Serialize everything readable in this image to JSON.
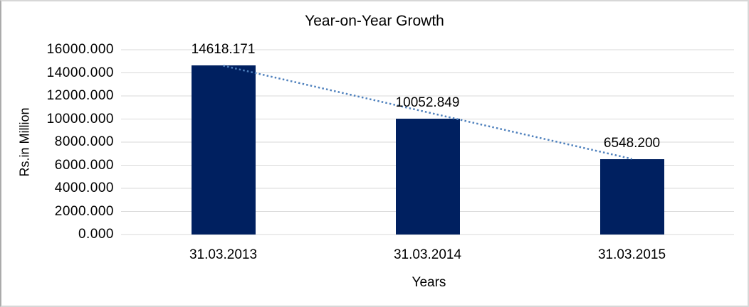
{
  "chart_data": {
    "type": "bar",
    "title": "Year-on-Year Growth",
    "categories": [
      "31.03.2013",
      "31.03.2014",
      "31.03.2015"
    ],
    "values": [
      14618.171,
      10052.849,
      6548.2
    ],
    "data_labels": [
      "14618.171",
      "10052.849",
      "6548.200"
    ],
    "xlabel": "Years",
    "ylabel": "Rs.in Million",
    "ylim": [
      0,
      16000
    ],
    "ytick_step": 2000,
    "ytick_labels": [
      "0.000",
      "2000.000",
      "4000.000",
      "6000.000",
      "8000.000",
      "10000.000",
      "12000.000",
      "14000.000",
      "16000.000"
    ],
    "grid": true,
    "legend": "none",
    "bar_color": "#002060",
    "gridline_color": "#d9d9d9",
    "trendline": {
      "type": "linear",
      "style": "dotted",
      "color": "#4f81bd"
    }
  }
}
